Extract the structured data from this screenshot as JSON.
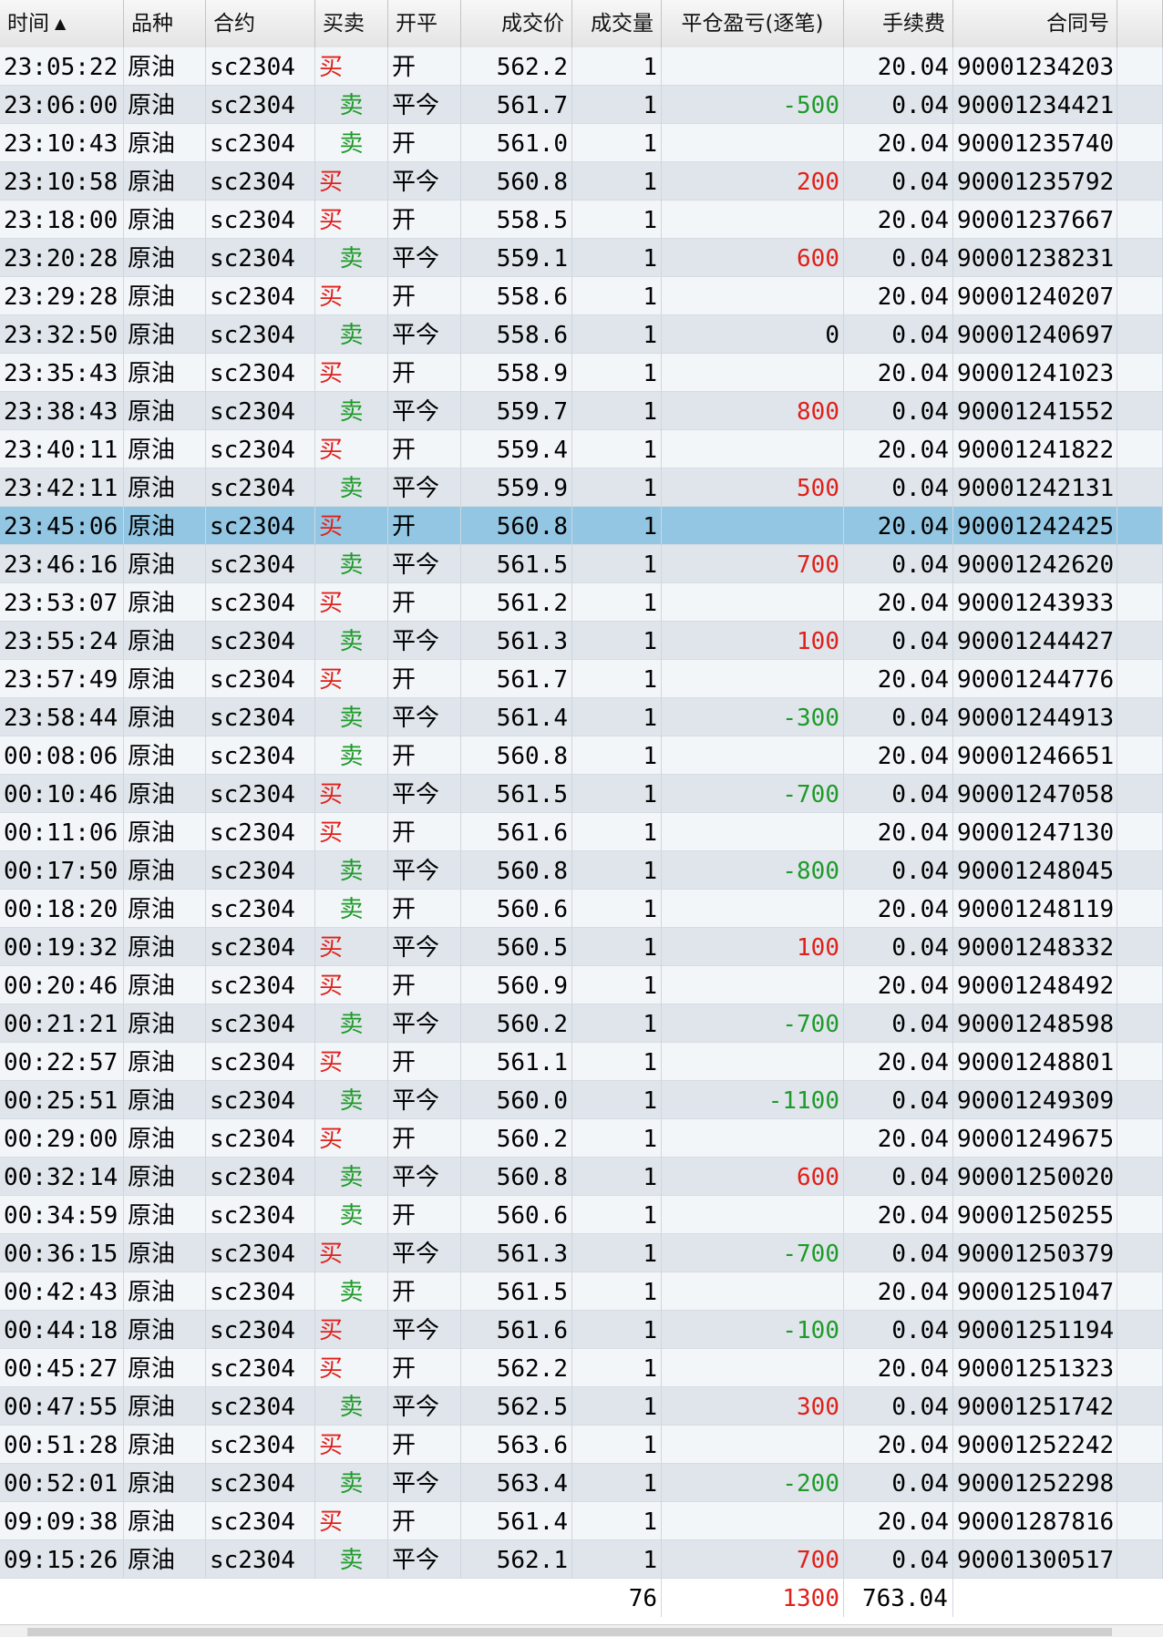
{
  "headers": {
    "time": "时间",
    "sort_icon": "▲",
    "product": "品种",
    "contract": "合约",
    "side": "买卖",
    "open_close": "开平",
    "price": "成交价",
    "volume": "成交量",
    "pnl": "平仓盈亏(逐笔)",
    "fee": "手续费",
    "order_no": "合同号"
  },
  "selected_index": 12,
  "colors": {
    "buy": "#e0201a",
    "sell": "#1f9a2a",
    "selected": "#93c6e2"
  },
  "rows": [
    {
      "time": "23:05:22",
      "product": "原油",
      "contract": "sc2304",
      "side": "买",
      "oc": "开",
      "price": "562.2",
      "vol": "1",
      "pnl": "",
      "fee": "20.04",
      "order": "90001234203"
    },
    {
      "time": "23:06:00",
      "product": "原油",
      "contract": "sc2304",
      "side": "卖",
      "oc": "平今",
      "price": "561.7",
      "vol": "1",
      "pnl": "-500",
      "fee": "0.04",
      "order": "90001234421"
    },
    {
      "time": "23:10:43",
      "product": "原油",
      "contract": "sc2304",
      "side": "卖",
      "oc": "开",
      "price": "561.0",
      "vol": "1",
      "pnl": "",
      "fee": "20.04",
      "order": "90001235740"
    },
    {
      "time": "23:10:58",
      "product": "原油",
      "contract": "sc2304",
      "side": "买",
      "oc": "平今",
      "price": "560.8",
      "vol": "1",
      "pnl": "200",
      "fee": "0.04",
      "order": "90001235792"
    },
    {
      "time": "23:18:00",
      "product": "原油",
      "contract": "sc2304",
      "side": "买",
      "oc": "开",
      "price": "558.5",
      "vol": "1",
      "pnl": "",
      "fee": "20.04",
      "order": "90001237667"
    },
    {
      "time": "23:20:28",
      "product": "原油",
      "contract": "sc2304",
      "side": "卖",
      "oc": "平今",
      "price": "559.1",
      "vol": "1",
      "pnl": "600",
      "fee": "0.04",
      "order": "90001238231"
    },
    {
      "time": "23:29:28",
      "product": "原油",
      "contract": "sc2304",
      "side": "买",
      "oc": "开",
      "price": "558.6",
      "vol": "1",
      "pnl": "",
      "fee": "20.04",
      "order": "90001240207"
    },
    {
      "time": "23:32:50",
      "product": "原油",
      "contract": "sc2304",
      "side": "卖",
      "oc": "平今",
      "price": "558.6",
      "vol": "1",
      "pnl": "0",
      "fee": "0.04",
      "order": "90001240697"
    },
    {
      "time": "23:35:43",
      "product": "原油",
      "contract": "sc2304",
      "side": "买",
      "oc": "开",
      "price": "558.9",
      "vol": "1",
      "pnl": "",
      "fee": "20.04",
      "order": "90001241023"
    },
    {
      "time": "23:38:43",
      "product": "原油",
      "contract": "sc2304",
      "side": "卖",
      "oc": "平今",
      "price": "559.7",
      "vol": "1",
      "pnl": "800",
      "fee": "0.04",
      "order": "90001241552"
    },
    {
      "time": "23:40:11",
      "product": "原油",
      "contract": "sc2304",
      "side": "买",
      "oc": "开",
      "price": "559.4",
      "vol": "1",
      "pnl": "",
      "fee": "20.04",
      "order": "90001241822"
    },
    {
      "time": "23:42:11",
      "product": "原油",
      "contract": "sc2304",
      "side": "卖",
      "oc": "平今",
      "price": "559.9",
      "vol": "1",
      "pnl": "500",
      "fee": "0.04",
      "order": "90001242131"
    },
    {
      "time": "23:45:06",
      "product": "原油",
      "contract": "sc2304",
      "side": "买",
      "oc": "开",
      "price": "560.8",
      "vol": "1",
      "pnl": "",
      "fee": "20.04",
      "order": "90001242425"
    },
    {
      "time": "23:46:16",
      "product": "原油",
      "contract": "sc2304",
      "side": "卖",
      "oc": "平今",
      "price": "561.5",
      "vol": "1",
      "pnl": "700",
      "fee": "0.04",
      "order": "90001242620"
    },
    {
      "time": "23:53:07",
      "product": "原油",
      "contract": "sc2304",
      "side": "买",
      "oc": "开",
      "price": "561.2",
      "vol": "1",
      "pnl": "",
      "fee": "20.04",
      "order": "90001243933"
    },
    {
      "time": "23:55:24",
      "product": "原油",
      "contract": "sc2304",
      "side": "卖",
      "oc": "平今",
      "price": "561.3",
      "vol": "1",
      "pnl": "100",
      "fee": "0.04",
      "order": "90001244427"
    },
    {
      "time": "23:57:49",
      "product": "原油",
      "contract": "sc2304",
      "side": "买",
      "oc": "开",
      "price": "561.7",
      "vol": "1",
      "pnl": "",
      "fee": "20.04",
      "order": "90001244776"
    },
    {
      "time": "23:58:44",
      "product": "原油",
      "contract": "sc2304",
      "side": "卖",
      "oc": "平今",
      "price": "561.4",
      "vol": "1",
      "pnl": "-300",
      "fee": "0.04",
      "order": "90001244913"
    },
    {
      "time": "00:08:06",
      "product": "原油",
      "contract": "sc2304",
      "side": "卖",
      "oc": "开",
      "price": "560.8",
      "vol": "1",
      "pnl": "",
      "fee": "20.04",
      "order": "90001246651"
    },
    {
      "time": "00:10:46",
      "product": "原油",
      "contract": "sc2304",
      "side": "买",
      "oc": "平今",
      "price": "561.5",
      "vol": "1",
      "pnl": "-700",
      "fee": "0.04",
      "order": "90001247058"
    },
    {
      "time": "00:11:06",
      "product": "原油",
      "contract": "sc2304",
      "side": "买",
      "oc": "开",
      "price": "561.6",
      "vol": "1",
      "pnl": "",
      "fee": "20.04",
      "order": "90001247130"
    },
    {
      "time": "00:17:50",
      "product": "原油",
      "contract": "sc2304",
      "side": "卖",
      "oc": "平今",
      "price": "560.8",
      "vol": "1",
      "pnl": "-800",
      "fee": "0.04",
      "order": "90001248045"
    },
    {
      "time": "00:18:20",
      "product": "原油",
      "contract": "sc2304",
      "side": "卖",
      "oc": "开",
      "price": "560.6",
      "vol": "1",
      "pnl": "",
      "fee": "20.04",
      "order": "90001248119"
    },
    {
      "time": "00:19:32",
      "product": "原油",
      "contract": "sc2304",
      "side": "买",
      "oc": "平今",
      "price": "560.5",
      "vol": "1",
      "pnl": "100",
      "fee": "0.04",
      "order": "90001248332"
    },
    {
      "time": "00:20:46",
      "product": "原油",
      "contract": "sc2304",
      "side": "买",
      "oc": "开",
      "price": "560.9",
      "vol": "1",
      "pnl": "",
      "fee": "20.04",
      "order": "90001248492"
    },
    {
      "time": "00:21:21",
      "product": "原油",
      "contract": "sc2304",
      "side": "卖",
      "oc": "平今",
      "price": "560.2",
      "vol": "1",
      "pnl": "-700",
      "fee": "0.04",
      "order": "90001248598"
    },
    {
      "time": "00:22:57",
      "product": "原油",
      "contract": "sc2304",
      "side": "买",
      "oc": "开",
      "price": "561.1",
      "vol": "1",
      "pnl": "",
      "fee": "20.04",
      "order": "90001248801"
    },
    {
      "time": "00:25:51",
      "product": "原油",
      "contract": "sc2304",
      "side": "卖",
      "oc": "平今",
      "price": "560.0",
      "vol": "1",
      "pnl": "-1100",
      "fee": "0.04",
      "order": "90001249309"
    },
    {
      "time": "00:29:00",
      "product": "原油",
      "contract": "sc2304",
      "side": "买",
      "oc": "开",
      "price": "560.2",
      "vol": "1",
      "pnl": "",
      "fee": "20.04",
      "order": "90001249675"
    },
    {
      "time": "00:32:14",
      "product": "原油",
      "contract": "sc2304",
      "side": "卖",
      "oc": "平今",
      "price": "560.8",
      "vol": "1",
      "pnl": "600",
      "fee": "0.04",
      "order": "90001250020"
    },
    {
      "time": "00:34:59",
      "product": "原油",
      "contract": "sc2304",
      "side": "卖",
      "oc": "开",
      "price": "560.6",
      "vol": "1",
      "pnl": "",
      "fee": "20.04",
      "order": "90001250255"
    },
    {
      "time": "00:36:15",
      "product": "原油",
      "contract": "sc2304",
      "side": "买",
      "oc": "平今",
      "price": "561.3",
      "vol": "1",
      "pnl": "-700",
      "fee": "0.04",
      "order": "90001250379"
    },
    {
      "time": "00:42:43",
      "product": "原油",
      "contract": "sc2304",
      "side": "卖",
      "oc": "开",
      "price": "561.5",
      "vol": "1",
      "pnl": "",
      "fee": "20.04",
      "order": "90001251047"
    },
    {
      "time": "00:44:18",
      "product": "原油",
      "contract": "sc2304",
      "side": "买",
      "oc": "平今",
      "price": "561.6",
      "vol": "1",
      "pnl": "-100",
      "fee": "0.04",
      "order": "90001251194"
    },
    {
      "time": "00:45:27",
      "product": "原油",
      "contract": "sc2304",
      "side": "买",
      "oc": "开",
      "price": "562.2",
      "vol": "1",
      "pnl": "",
      "fee": "20.04",
      "order": "90001251323"
    },
    {
      "time": "00:47:55",
      "product": "原油",
      "contract": "sc2304",
      "side": "卖",
      "oc": "平今",
      "price": "562.5",
      "vol": "1",
      "pnl": "300",
      "fee": "0.04",
      "order": "90001251742"
    },
    {
      "time": "00:51:28",
      "product": "原油",
      "contract": "sc2304",
      "side": "买",
      "oc": "开",
      "price": "563.6",
      "vol": "1",
      "pnl": "",
      "fee": "20.04",
      "order": "90001252242"
    },
    {
      "time": "00:52:01",
      "product": "原油",
      "contract": "sc2304",
      "side": "卖",
      "oc": "平今",
      "price": "563.4",
      "vol": "1",
      "pnl": "-200",
      "fee": "0.04",
      "order": "90001252298"
    },
    {
      "time": "09:09:38",
      "product": "原油",
      "contract": "sc2304",
      "side": "买",
      "oc": "开",
      "price": "561.4",
      "vol": "1",
      "pnl": "",
      "fee": "20.04",
      "order": "90001287816"
    },
    {
      "time": "09:15:26",
      "product": "原油",
      "contract": "sc2304",
      "side": "卖",
      "oc": "平今",
      "price": "562.1",
      "vol": "1",
      "pnl": "700",
      "fee": "0.04",
      "order": "90001300517"
    }
  ],
  "totals": {
    "volume": "76",
    "pnl": "1300",
    "fee": "763.04"
  }
}
